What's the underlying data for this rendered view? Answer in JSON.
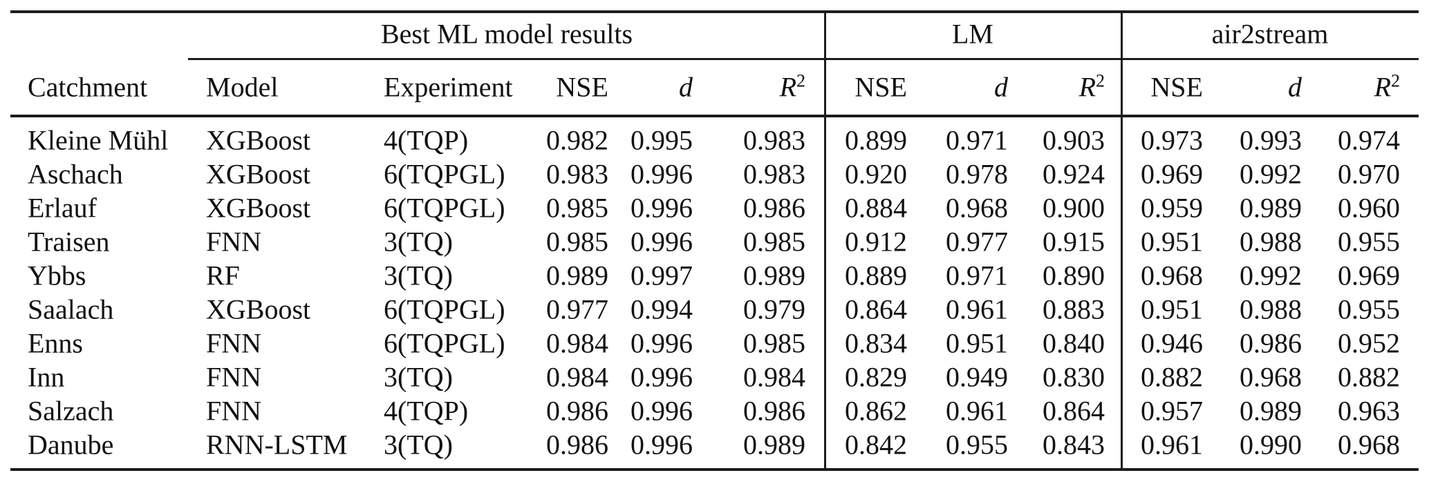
{
  "table": {
    "groups": [
      {
        "label": "Best ML model results"
      },
      {
        "label": "LM"
      },
      {
        "label": "air2stream"
      }
    ],
    "headers": {
      "catchment": "Catchment",
      "model": "Model",
      "experiment": "Experiment",
      "nse": "NSE",
      "d": "d",
      "r2_base": "R",
      "r2_sup": "2"
    },
    "rows": [
      {
        "catchment": "Kleine Mühl",
        "model": "XGBoost",
        "experiment": "4(TQP)",
        "values": [
          "0.982",
          "0.995",
          "0.983",
          "0.899",
          "0.971",
          "0.903",
          "0.973",
          "0.993",
          "0.974"
        ]
      },
      {
        "catchment": "Aschach",
        "model": "XGBoost",
        "experiment": "6(TQPGL)",
        "values": [
          "0.983",
          "0.996",
          "0.983",
          "0.920",
          "0.978",
          "0.924",
          "0.969",
          "0.992",
          "0.970"
        ]
      },
      {
        "catchment": "Erlauf",
        "model": "XGBoost",
        "experiment": "6(TQPGL)",
        "values": [
          "0.985",
          "0.996",
          "0.986",
          "0.884",
          "0.968",
          "0.900",
          "0.959",
          "0.989",
          "0.960"
        ]
      },
      {
        "catchment": "Traisen",
        "model": "FNN",
        "experiment": "3(TQ)",
        "values": [
          "0.985",
          "0.996",
          "0.985",
          "0.912",
          "0.977",
          "0.915",
          "0.951",
          "0.988",
          "0.955"
        ]
      },
      {
        "catchment": "Ybbs",
        "model": "RF",
        "experiment": "3(TQ)",
        "values": [
          "0.989",
          "0.997",
          "0.989",
          "0.889",
          "0.971",
          "0.890",
          "0.968",
          "0.992",
          "0.969"
        ]
      },
      {
        "catchment": "Saalach",
        "model": "XGBoost",
        "experiment": "6(TQPGL)",
        "values": [
          "0.977",
          "0.994",
          "0.979",
          "0.864",
          "0.961",
          "0.883",
          "0.951",
          "0.988",
          "0.955"
        ]
      },
      {
        "catchment": "Enns",
        "model": "FNN",
        "experiment": "6(TQPGL)",
        "values": [
          "0.984",
          "0.996",
          "0.985",
          "0.834",
          "0.951",
          "0.840",
          "0.946",
          "0.986",
          "0.952"
        ]
      },
      {
        "catchment": "Inn",
        "model": "FNN",
        "experiment": "3(TQ)",
        "values": [
          "0.984",
          "0.996",
          "0.984",
          "0.829",
          "0.949",
          "0.830",
          "0.882",
          "0.968",
          "0.882"
        ]
      },
      {
        "catchment": "Salzach",
        "model": "FNN",
        "experiment": "4(TQP)",
        "values": [
          "0.986",
          "0.996",
          "0.986",
          "0.862",
          "0.961",
          "0.864",
          "0.957",
          "0.989",
          "0.963"
        ]
      },
      {
        "catchment": "Danube",
        "model": "RNN-LSTM",
        "experiment": "3(TQ)",
        "values": [
          "0.986",
          "0.996",
          "0.989",
          "0.842",
          "0.955",
          "0.843",
          "0.961",
          "0.990",
          "0.968"
        ]
      }
    ]
  }
}
